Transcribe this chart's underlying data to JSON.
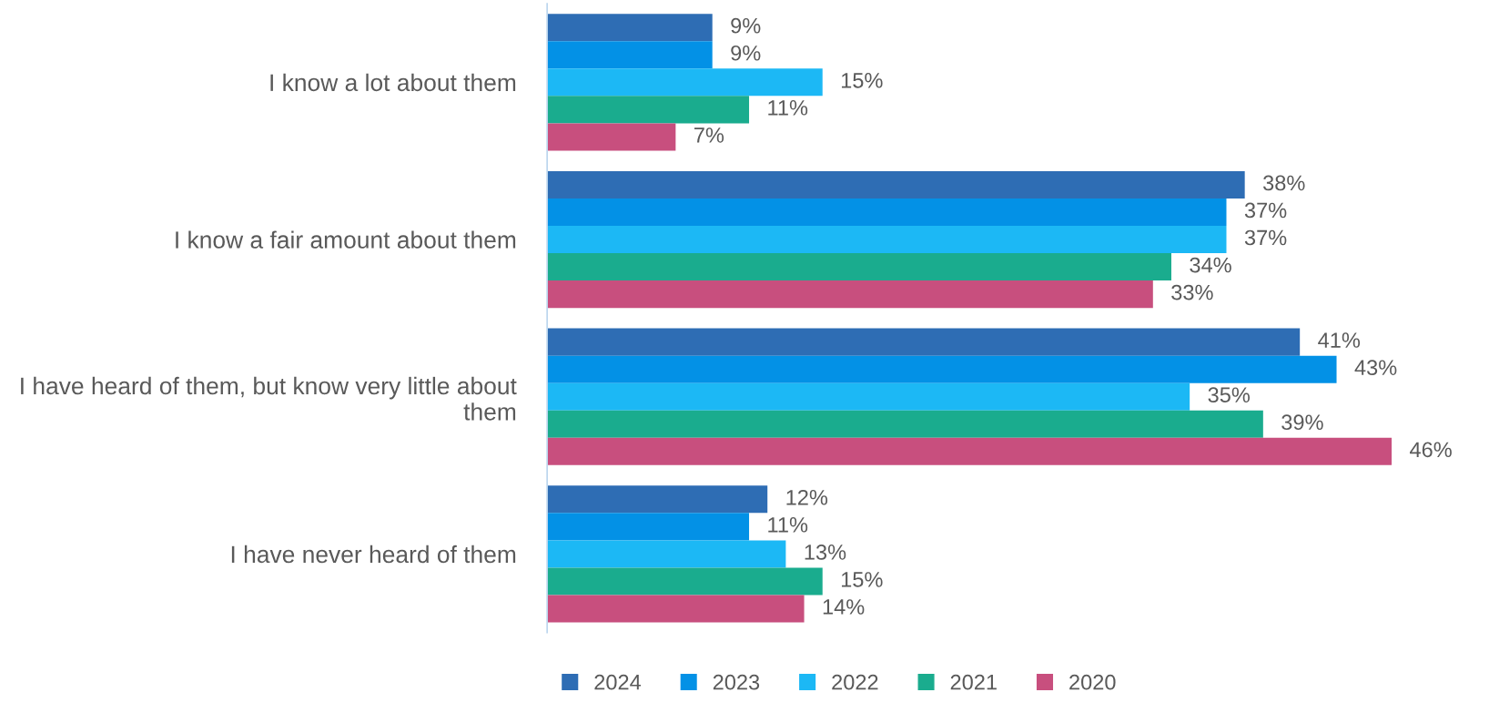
{
  "chart_data": {
    "type": "bar",
    "orientation": "horizontal",
    "relative": false,
    "categories": [
      "I know a lot about them",
      "I know a fair amount about them",
      "I have heard of them, but know very little about them",
      "I have never heard of them"
    ],
    "series": [
      {
        "name": "2024",
        "color": "#2e6db4",
        "values": [
          9,
          38,
          41,
          12
        ],
        "value_labels": [
          "9%",
          "38%",
          "41%",
          "12%"
        ]
      },
      {
        "name": "2023",
        "color": "#0391e6",
        "values": [
          9,
          37,
          43,
          11
        ],
        "value_labels": [
          "9%",
          "37%",
          "43%",
          "11%"
        ]
      },
      {
        "name": "2022",
        "color": "#1cb8f5",
        "values": [
          15,
          37,
          35,
          13
        ],
        "value_labels": [
          "15%",
          "37%",
          "35%",
          "13%"
        ]
      },
      {
        "name": "2021",
        "color": "#1aac8e",
        "values": [
          11,
          34,
          39,
          15
        ],
        "value_labels": [
          "11%",
          "34%",
          "39%",
          "15%"
        ]
      },
      {
        "name": "2020",
        "color": "#c84f7e",
        "values": [
          7,
          33,
          46,
          14
        ],
        "value_labels": [
          "7%",
          "33%",
          "46%",
          "14%"
        ]
      }
    ],
    "legend": "bottom",
    "grid": false,
    "tick_labels": "y"
  }
}
